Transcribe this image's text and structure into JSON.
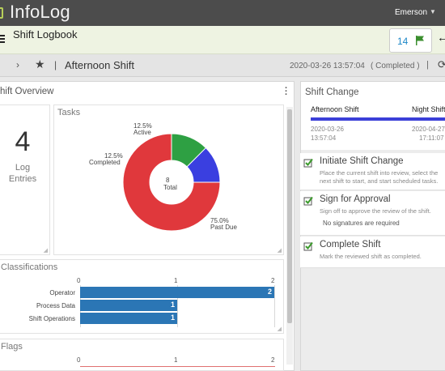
{
  "app": {
    "title": "InfoLog",
    "user": "Emerson"
  },
  "header": {
    "page_title": "Shift Logbook",
    "flag_count": "14"
  },
  "shift_bar": {
    "shift_name": "Afternoon Shift",
    "timestamp": "2020-03-26 13:57:04",
    "status": "( Completed )"
  },
  "overview": {
    "title": "hift Overview",
    "log_entries": {
      "count": "4",
      "label_line1": "Log",
      "label_line2": "Entries"
    },
    "tasks": {
      "title": "Tasks",
      "center_value": "8",
      "center_label": "Total",
      "slices": [
        {
          "pct": "12.5%",
          "name": "Active",
          "color": "#2ea043"
        },
        {
          "pct": "12.5%",
          "name": "Completed",
          "color": "#3a3fe0"
        },
        {
          "pct": "75.0%",
          "name": "Past Due",
          "color": "#e0383c"
        }
      ]
    },
    "classifications": {
      "title": "Classifications",
      "ticks": [
        "0",
        "1",
        "2"
      ],
      "rows": [
        {
          "label": "Operator",
          "value": "2"
        },
        {
          "label": "Process Data",
          "value": "1"
        },
        {
          "label": "Shift Operations",
          "value": "1"
        }
      ]
    },
    "flags": {
      "title": "Flags",
      "ticks": [
        "0",
        "1",
        "2"
      ]
    }
  },
  "chart_data": [
    {
      "type": "pie",
      "title": "Tasks",
      "categories": [
        "Active",
        "Completed",
        "Past Due"
      ],
      "values": [
        12.5,
        12.5,
        75.0
      ],
      "total": 8
    },
    {
      "type": "bar",
      "title": "Classifications",
      "categories": [
        "Operator",
        "Process Data",
        "Shift Operations"
      ],
      "values": [
        2,
        1,
        1
      ],
      "xlim": [
        0,
        2
      ]
    }
  ],
  "shift_change": {
    "title": "Shift Change",
    "from_label": "Afternoon Shift",
    "to_label": "Night Shift",
    "from_date": "2020-03-26",
    "from_time": "13:57:04",
    "to_date": "2020-04-27",
    "to_time": "17:11:07",
    "steps": [
      {
        "title": "Initiate Shift Change",
        "desc": "Place the current shift into review, select the next shift to start, and start scheduled tasks."
      },
      {
        "title": "Sign for Approval",
        "desc": "Sign off to approve the review of the shift.",
        "extra": "No signatures are required"
      },
      {
        "title": "Complete Shift",
        "desc": "Mark the reviewed shift as completed."
      }
    ]
  }
}
